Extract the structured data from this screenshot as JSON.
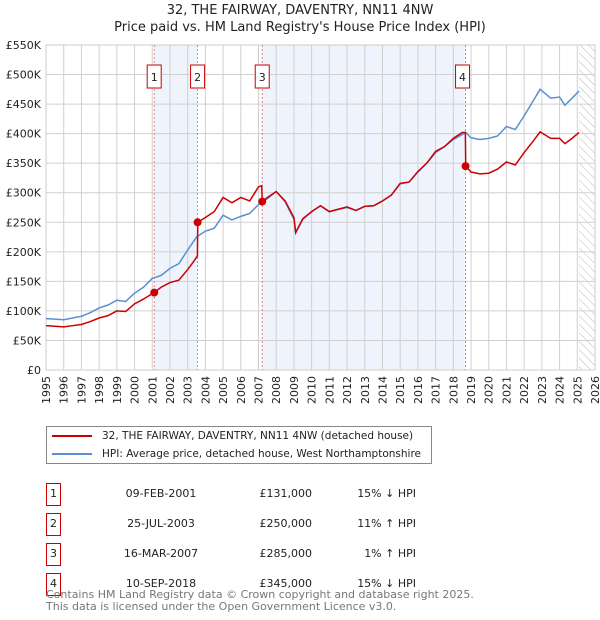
{
  "chart_data": {
    "type": "line",
    "title": "32, THE FAIRWAY, DAVENTRY, NN11 4NW",
    "subtitle": "Price paid vs. HM Land Registry's House Price Index (HPI)",
    "xlim": [
      1995,
      2026
    ],
    "ylim": [
      0,
      550000
    ],
    "grid": true,
    "x_ticks": [
      "1995",
      "1996",
      "1997",
      "1998",
      "1999",
      "2000",
      "2001",
      "2002",
      "2003",
      "2004",
      "2005",
      "2006",
      "2007",
      "2008",
      "2009",
      "2010",
      "2011",
      "2012",
      "2013",
      "2014",
      "2015",
      "2016",
      "2017",
      "2018",
      "2019",
      "2020",
      "2021",
      "2022",
      "2023",
      "2024",
      "2025",
      "2026"
    ],
    "y_ticks": [
      "£0",
      "£50K",
      "£100K",
      "£150K",
      "£200K",
      "£250K",
      "£300K",
      "£350K",
      "£400K",
      "£450K",
      "£500K",
      "£550K"
    ],
    "legend_position": "below",
    "series": [
      {
        "name": "32, THE FAIRWAY, DAVENTRY, NN11 4NW (detached house)",
        "color": "#cc0000",
        "x": [
          1995,
          1995.5,
          1996,
          1996.5,
          1997,
          1997.5,
          1998,
          1998.5,
          1999,
          1999.5,
          2000,
          2000.5,
          2001.1,
          2001.5,
          2002,
          2002.5,
          2003,
          2003.3,
          2003.55,
          2003.57,
          2004,
          2004.5,
          2005,
          2005.5,
          2006,
          2006.5,
          2007,
          2007.18,
          2007.21,
          2007.5,
          2008,
          2008.5,
          2009,
          2009.1,
          2009.5,
          2010,
          2010.5,
          2011,
          2011.5,
          2012,
          2012.5,
          2013,
          2013.5,
          2014,
          2014.5,
          2015,
          2015.5,
          2016,
          2016.5,
          2017,
          2017.5,
          2018,
          2018.5,
          2018.68,
          2018.7,
          2019,
          2019.5,
          2020,
          2020.5,
          2021,
          2021.5,
          2022,
          2022.5,
          2022.9,
          2023.5,
          2024,
          2024.3,
          2024.7,
          2025.1
        ],
        "y": [
          75000,
          74000,
          73000,
          75000,
          77000,
          82000,
          88000,
          92000,
          100000,
          99000,
          112000,
          120000,
          131000,
          140000,
          148000,
          152000,
          170000,
          182000,
          193000,
          250000,
          258000,
          268000,
          292000,
          283000,
          292000,
          286000,
          310000,
          312000,
          285000,
          292000,
          302000,
          286000,
          258000,
          233000,
          256000,
          268000,
          278000,
          268000,
          272000,
          276000,
          270000,
          277000,
          278000,
          286000,
          296000,
          316000,
          318000,
          336000,
          350000,
          370000,
          378000,
          392000,
          402000,
          402000,
          345000,
          335000,
          332000,
          333000,
          340000,
          352000,
          347000,
          368000,
          387000,
          403000,
          392000,
          392000,
          383000,
          392000,
          402000
        ]
      },
      {
        "name": "HPI: Average price, detached house, West Northamptonshire",
        "color": "#5b8fd0",
        "x": [
          1995,
          1995.5,
          1996,
          1996.5,
          1997,
          1997.5,
          1998,
          1998.5,
          1999,
          1999.5,
          2000,
          2000.5,
          2001,
          2001.5,
          2002,
          2002.5,
          2003,
          2003.5,
          2004,
          2004.5,
          2005,
          2005.5,
          2006,
          2006.5,
          2007,
          2007.5,
          2008,
          2008.5,
          2009,
          2009.1,
          2009.5,
          2010,
          2010.5,
          2011,
          2011.5,
          2012,
          2012.5,
          2013,
          2013.5,
          2014,
          2014.5,
          2015,
          2015.5,
          2016,
          2016.5,
          2017,
          2017.5,
          2018,
          2018.7,
          2019,
          2019.5,
          2020,
          2020.5,
          2021,
          2021.5,
          2022,
          2022.5,
          2022.9,
          2023.5,
          2024,
          2024.3,
          2024.7,
          2025.1
        ],
        "y": [
          87000,
          86000,
          85000,
          88000,
          91000,
          97000,
          105000,
          110000,
          118000,
          116000,
          130000,
          140000,
          155000,
          160000,
          172000,
          180000,
          203000,
          225000,
          235000,
          240000,
          262000,
          254000,
          260000,
          265000,
          280000,
          290000,
          302000,
          285000,
          255000,
          232000,
          255000,
          268000,
          278000,
          268000,
          272000,
          275000,
          270000,
          277000,
          278000,
          286000,
          296000,
          315000,
          318000,
          335000,
          350000,
          368000,
          378000,
          390000,
          402000,
          393000,
          390000,
          392000,
          396000,
          412000,
          407000,
          430000,
          455000,
          475000,
          460000,
          462000,
          448000,
          460000,
          472000
        ]
      }
    ],
    "sales": [
      {
        "n": "1",
        "x": 2001.11,
        "y": 131000
      },
      {
        "n": "2",
        "x": 2003.56,
        "y": 250000
      },
      {
        "n": "3",
        "x": 2007.21,
        "y": 285000
      },
      {
        "n": "4",
        "x": 2018.69,
        "y": 345000
      }
    ],
    "shaded_ranges": [
      [
        2001.11,
        2003.56
      ],
      [
        2007.21,
        2018.69
      ]
    ],
    "forecast_from": 2025.1
  },
  "legend": {
    "property": "32, THE FAIRWAY, DAVENTRY, NN11 4NW (detached house)",
    "hpi": "HPI: Average price, detached house, West Northamptonshire"
  },
  "table": [
    {
      "n": "1",
      "date": "09-FEB-2001",
      "price": "£131,000",
      "hpi": "15% ↓ HPI"
    },
    {
      "n": "2",
      "date": "25-JUL-2003",
      "price": "£250,000",
      "hpi": "11% ↑ HPI"
    },
    {
      "n": "3",
      "date": "16-MAR-2007",
      "price": "£285,000",
      "hpi": "1% ↑ HPI"
    },
    {
      "n": "4",
      "date": "10-SEP-2018",
      "price": "£345,000",
      "hpi": "15% ↓ HPI"
    }
  ],
  "footer": {
    "line1": "Contains HM Land Registry data © Crown copyright and database right 2025.",
    "line2": "This data is licensed under the Open Government Licence v3.0."
  }
}
